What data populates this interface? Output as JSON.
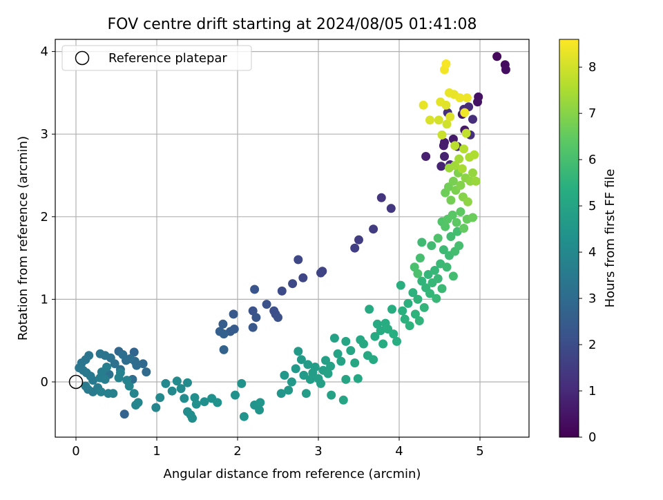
{
  "chart_data": {
    "type": "scatter",
    "title": "FOV centre drift starting at 2024/08/05 01:41:08",
    "xlabel": "Angular distance from reference (arcmin)",
    "ylabel": "Rotation from reference (arcmin)",
    "xlim": [
      -0.25,
      5.6
    ],
    "ylim": [
      -0.67,
      4.15
    ],
    "xticks": [
      "0",
      "1",
      "2",
      "3",
      "4",
      "5"
    ],
    "yticks": [
      "0",
      "1",
      "2",
      "3",
      "4"
    ],
    "grid": true,
    "colorbar": {
      "label": "Hours from first FF file",
      "range": [
        0,
        8.6
      ],
      "ticks": [
        "0",
        "1",
        "2",
        "3",
        "4",
        "5",
        "6",
        "7",
        "8"
      ],
      "colormap": "viridis"
    },
    "legend": {
      "position": "top-left",
      "entries": [
        "Reference platepar"
      ]
    },
    "reference_marker": {
      "x": 0,
      "y": 0,
      "label": "Reference platepar"
    },
    "series": [
      {
        "color_by": "hours",
        "points": [
          [
            5.21,
            3.94,
            0.2
          ],
          [
            5.31,
            3.84,
            0.3
          ],
          [
            5.32,
            3.78,
            0.35
          ],
          [
            4.98,
            3.45,
            0.4
          ],
          [
            4.97,
            3.39,
            0.45
          ],
          [
            4.78,
            3.24,
            0.5
          ],
          [
            4.81,
            3.05,
            0.55
          ],
          [
            4.67,
            2.94,
            0.6
          ],
          [
            4.56,
            2.9,
            0.65
          ],
          [
            4.55,
            2.86,
            0.7
          ],
          [
            4.33,
            2.73,
            0.75
          ],
          [
            4.56,
            2.73,
            0.8
          ],
          [
            4.52,
            2.61,
            0.85
          ],
          [
            4.63,
            2.63,
            0.9
          ],
          [
            4.72,
            2.85,
            0.95
          ],
          [
            4.8,
            3.3,
            1.0
          ],
          [
            4.86,
            3.33,
            1.05
          ],
          [
            4.91,
            3.18,
            1.1
          ],
          [
            4.6,
            3.26,
            1.15
          ],
          [
            4.88,
            2.99,
            1.2
          ],
          [
            3.78,
            2.23,
            1.3
          ],
          [
            3.9,
            2.1,
            1.4
          ],
          [
            3.68,
            1.85,
            1.5
          ],
          [
            3.5,
            1.72,
            1.55
          ],
          [
            3.45,
            1.62,
            1.6
          ],
          [
            3.05,
            1.34,
            1.7
          ],
          [
            3.03,
            1.32,
            1.75
          ],
          [
            2.81,
            1.26,
            1.8
          ],
          [
            2.75,
            1.48,
            1.85
          ],
          [
            2.68,
            1.19,
            1.9
          ],
          [
            2.55,
            1.1,
            1.95
          ],
          [
            2.47,
            0.82,
            2.0
          ],
          [
            2.45,
            0.86,
            2.05
          ],
          [
            2.5,
            0.78,
            2.1
          ],
          [
            2.36,
            0.94,
            2.15
          ],
          [
            2.19,
            0.86,
            2.2
          ],
          [
            2.21,
            1.12,
            2.25
          ],
          [
            2.23,
            0.78,
            2.3
          ],
          [
            2.19,
            0.66,
            2.35
          ],
          [
            1.95,
            0.82,
            2.4
          ],
          [
            1.96,
            0.64,
            2.45
          ],
          [
            1.91,
            0.61,
            2.5
          ],
          [
            1.82,
            0.7,
            2.55
          ],
          [
            1.78,
            0.61,
            2.6
          ],
          [
            1.83,
            0.58,
            2.65
          ],
          [
            1.83,
            0.39,
            2.7
          ],
          [
            0.6,
            -0.39,
            2.75
          ],
          [
            0.72,
            0.36,
            2.8
          ],
          [
            0.53,
            0.37,
            2.85
          ],
          [
            0.83,
            0.22,
            2.9
          ],
          [
            0.87,
            0.12,
            2.95
          ],
          [
            0.73,
            0.25,
            3.0
          ],
          [
            0.75,
            0.2,
            3.02
          ],
          [
            0.7,
            0.03,
            3.05
          ],
          [
            0.67,
            0.28,
            3.08
          ],
          [
            0.62,
            0.26,
            3.1
          ],
          [
            0.58,
            0.33,
            3.12
          ],
          [
            0.55,
            0.15,
            3.15
          ],
          [
            0.48,
            0.22,
            3.18
          ],
          [
            0.43,
            0.29,
            3.2
          ],
          [
            0.41,
            0.09,
            3.22
          ],
          [
            0.36,
            0.32,
            3.25
          ],
          [
            0.3,
            0.34,
            3.28
          ],
          [
            0.16,
            0.32,
            3.3
          ],
          [
            0.12,
            0.27,
            3.32
          ],
          [
            0.07,
            0.23,
            3.35
          ],
          [
            0.04,
            0.17,
            3.38
          ],
          [
            0.09,
            0.14,
            3.4
          ],
          [
            0.13,
            0.11,
            3.42
          ],
          [
            0.18,
            0.07,
            3.45
          ],
          [
            0.21,
            0.02,
            3.48
          ],
          [
            0.12,
            -0.05,
            3.5
          ],
          [
            0.15,
            -0.09,
            3.52
          ],
          [
            0.21,
            -0.12,
            3.55
          ],
          [
            0.27,
            -0.07,
            3.58
          ],
          [
            0.3,
            0.05,
            3.6
          ],
          [
            0.32,
            0.12,
            3.62
          ],
          [
            0.36,
            0.03,
            3.65
          ],
          [
            0.38,
            0.18,
            3.68
          ],
          [
            0.31,
            -0.12,
            3.7
          ],
          [
            0.4,
            -0.14,
            3.72
          ],
          [
            0.46,
            -0.14,
            3.75
          ],
          [
            0.53,
            0.05,
            3.78
          ],
          [
            0.55,
            0.11,
            3.8
          ],
          [
            0.63,
            0.02,
            3.82
          ],
          [
            0.66,
            -0.05,
            3.85
          ],
          [
            0.72,
            -0.14,
            3.88
          ],
          [
            0.74,
            -0.28,
            3.9
          ],
          [
            0.77,
            -0.25,
            3.92
          ],
          [
            0.99,
            -0.31,
            3.95
          ],
          [
            1.04,
            -0.19,
            3.98
          ],
          [
            1.11,
            -0.02,
            4.0
          ],
          [
            1.19,
            -0.11,
            4.02
          ],
          [
            1.25,
            0.01,
            4.05
          ],
          [
            1.3,
            -0.08,
            4.08
          ],
          [
            1.38,
            -0.01,
            4.1
          ],
          [
            1.34,
            -0.2,
            4.12
          ],
          [
            1.38,
            -0.36,
            4.15
          ],
          [
            1.42,
            -0.4,
            4.18
          ],
          [
            1.44,
            -0.44,
            4.2
          ],
          [
            1.47,
            -0.19,
            4.22
          ],
          [
            1.49,
            -0.27,
            4.25
          ],
          [
            1.59,
            -0.24,
            4.28
          ],
          [
            1.68,
            -0.2,
            4.3
          ],
          [
            1.75,
            -0.25,
            4.32
          ],
          [
            1.97,
            -0.16,
            4.35
          ],
          [
            2.05,
            -0.02,
            4.38
          ],
          [
            2.08,
            -0.42,
            4.4
          ],
          [
            2.21,
            -0.28,
            4.42
          ],
          [
            2.27,
            -0.34,
            4.45
          ],
          [
            2.28,
            -0.25,
            4.48
          ],
          [
            2.54,
            -0.14,
            4.5
          ],
          [
            2.58,
            0.08,
            4.52
          ],
          [
            2.63,
            -0.1,
            4.55
          ],
          [
            2.67,
            0.0,
            4.58
          ],
          [
            2.72,
            0.16,
            4.6
          ],
          [
            2.75,
            0.37,
            4.62
          ],
          [
            2.79,
            0.27,
            4.65
          ],
          [
            2.82,
            0.08,
            4.68
          ],
          [
            2.85,
            -0.14,
            4.7
          ],
          [
            2.87,
            0.21,
            4.72
          ],
          [
            2.9,
            0.03,
            4.74
          ],
          [
            2.93,
            0.11,
            4.76
          ],
          [
            2.96,
            0.18,
            4.78
          ],
          [
            3.0,
            0.04,
            4.8
          ],
          [
            3.03,
            -0.02,
            4.82
          ],
          [
            3.06,
            0.14,
            4.84
          ],
          [
            3.09,
            0.26,
            4.86
          ],
          [
            3.12,
            0.1,
            4.88
          ],
          [
            3.15,
            0.19,
            4.9
          ],
          [
            3.16,
            -0.16,
            4.92
          ],
          [
            3.2,
            0.53,
            4.94
          ],
          [
            3.24,
            0.34,
            4.96
          ],
          [
            3.28,
            0.25,
            4.98
          ],
          [
            3.31,
            -0.22,
            5.0
          ],
          [
            3.34,
            0.03,
            5.02
          ],
          [
            3.34,
            0.49,
            5.04
          ],
          [
            3.4,
            0.38,
            5.06
          ],
          [
            3.45,
            0.23,
            5.08
          ],
          [
            3.49,
            0.04,
            5.1
          ],
          [
            3.52,
            0.51,
            5.12
          ],
          [
            3.56,
            0.46,
            5.14
          ],
          [
            3.61,
            0.32,
            5.16
          ],
          [
            3.63,
            0.88,
            5.18
          ],
          [
            3.68,
            0.27,
            5.2
          ],
          [
            3.7,
            0.55,
            5.22
          ],
          [
            3.73,
            0.7,
            5.24
          ],
          [
            3.77,
            0.62,
            5.26
          ],
          [
            3.8,
            0.46,
            5.28
          ],
          [
            3.83,
            0.71,
            5.3
          ],
          [
            3.86,
            0.64,
            5.32
          ],
          [
            3.91,
            0.88,
            5.34
          ],
          [
            3.93,
            0.58,
            5.36
          ],
          [
            3.97,
            0.49,
            5.38
          ],
          [
            4.02,
            1.17,
            5.4
          ],
          [
            4.04,
            0.86,
            5.42
          ],
          [
            4.07,
            0.76,
            5.44
          ],
          [
            4.11,
            0.95,
            5.46
          ],
          [
            4.13,
            0.68,
            5.48
          ],
          [
            4.17,
            1.08,
            5.5
          ],
          [
            4.2,
            0.82,
            5.52
          ],
          [
            4.23,
            1.0,
            5.54
          ],
          [
            4.25,
            0.74,
            5.56
          ],
          [
            4.28,
            1.22,
            5.58
          ],
          [
            4.31,
            0.9,
            5.6
          ],
          [
            4.33,
            1.14,
            5.62
          ],
          [
            4.36,
            1.3,
            5.64
          ],
          [
            4.38,
            1.07,
            5.66
          ],
          [
            4.41,
            1.2,
            5.68
          ],
          [
            4.44,
            1.35,
            5.7
          ],
          [
            4.46,
            1.01,
            5.72
          ],
          [
            4.48,
            1.25,
            5.74
          ],
          [
            4.51,
            1.43,
            5.76
          ],
          [
            4.53,
            1.13,
            5.78
          ],
          [
            4.55,
            1.6,
            5.8
          ],
          [
            4.59,
            1.39,
            5.82
          ],
          [
            4.62,
            1.53,
            5.84
          ],
          [
            4.28,
            1.69,
            5.86
          ],
          [
            4.4,
            1.65,
            5.88
          ],
          [
            4.64,
            1.76,
            5.9
          ],
          [
            4.67,
            1.28,
            5.92
          ],
          [
            4.69,
            1.58,
            5.94
          ],
          [
            4.72,
            1.82,
            5.96
          ],
          [
            4.74,
            1.65,
            5.98
          ],
          [
            4.26,
            1.5,
            6.0
          ],
          [
            4.19,
            1.39,
            6.05
          ],
          [
            4.23,
            1.31,
            6.1
          ],
          [
            4.48,
            1.74,
            6.15
          ],
          [
            4.53,
            1.94,
            6.2
          ],
          [
            4.57,
            1.88,
            6.25
          ],
          [
            4.6,
            1.97,
            6.3
          ],
          [
            4.66,
            2.02,
            6.35
          ],
          [
            4.71,
            1.93,
            6.4
          ],
          [
            4.76,
            2.06,
            6.45
          ],
          [
            4.8,
            1.86,
            6.5
          ],
          [
            4.84,
            1.97,
            6.55
          ],
          [
            4.91,
            1.99,
            6.6
          ],
          [
            4.57,
            2.29,
            6.65
          ],
          [
            4.61,
            2.36,
            6.7
          ],
          [
            4.64,
            2.2,
            6.75
          ],
          [
            4.67,
            2.43,
            6.8
          ],
          [
            4.7,
            2.32,
            6.85
          ],
          [
            4.73,
            2.53,
            6.9
          ],
          [
            4.76,
            2.38,
            6.95
          ],
          [
            4.79,
            2.24,
            7.0
          ],
          [
            4.82,
            2.47,
            7.05
          ],
          [
            4.85,
            2.18,
            7.1
          ],
          [
            4.88,
            2.43,
            7.15
          ],
          [
            4.91,
            2.53,
            7.2
          ],
          [
            4.95,
            2.43,
            7.25
          ],
          [
            4.62,
            2.59,
            7.3
          ],
          [
            4.69,
            2.62,
            7.35
          ],
          [
            4.74,
            2.7,
            7.4
          ],
          [
            4.78,
            2.58,
            7.45
          ],
          [
            4.87,
            2.72,
            7.5
          ],
          [
            4.93,
            2.75,
            7.55
          ],
          [
            4.8,
            2.82,
            7.6
          ],
          [
            4.69,
            2.86,
            7.7
          ],
          [
            4.83,
            3.01,
            7.8
          ],
          [
            4.53,
            2.99,
            7.9
          ],
          [
            4.59,
            3.12,
            8.0
          ],
          [
            4.49,
            3.17,
            8.05
          ],
          [
            4.38,
            3.17,
            8.1
          ],
          [
            4.63,
            3.21,
            8.15
          ],
          [
            4.58,
            3.35,
            8.2
          ],
          [
            4.51,
            3.39,
            8.25
          ],
          [
            4.3,
            3.35,
            8.3
          ],
          [
            4.62,
            3.5,
            8.32
          ],
          [
            4.68,
            3.48,
            8.35
          ],
          [
            4.75,
            3.44,
            8.38
          ],
          [
            4.84,
            3.44,
            8.4
          ],
          [
            4.81,
            3.26,
            8.42
          ],
          [
            4.56,
            3.78,
            8.45
          ],
          [
            4.58,
            3.85,
            8.5
          ]
        ]
      }
    ]
  }
}
